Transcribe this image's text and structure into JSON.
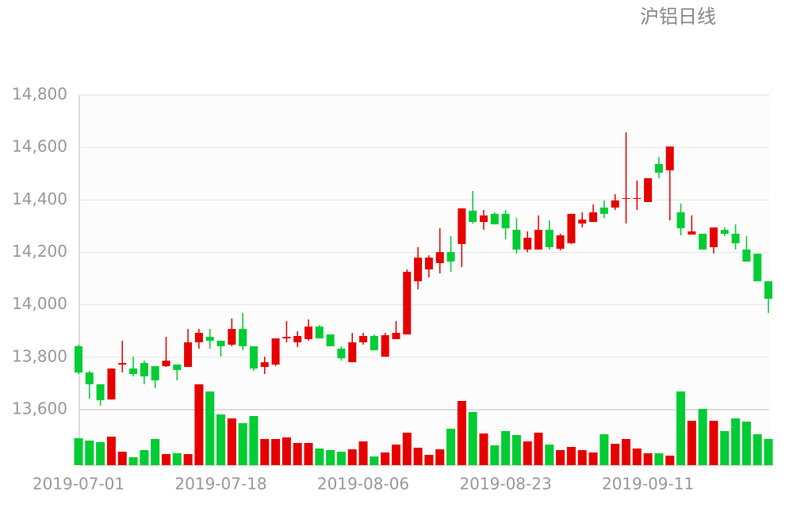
{
  "chart_data": {
    "type": "candlestick",
    "title": "沪铝日线",
    "categories": [
      "2019-07-01",
      null,
      null,
      null,
      null,
      null,
      null,
      null,
      null,
      null,
      null,
      null,
      null,
      "2019-07-18",
      null,
      null,
      null,
      null,
      null,
      null,
      null,
      null,
      null,
      null,
      null,
      null,
      "2019-08-06",
      null,
      null,
      null,
      null,
      null,
      null,
      null,
      null,
      null,
      null,
      null,
      null,
      "2019-08-23",
      null,
      null,
      null,
      null,
      null,
      null,
      null,
      null,
      null,
      null,
      null,
      null,
      "2019-09-11",
      null,
      null,
      null,
      null,
      null,
      null,
      null,
      null,
      null,
      null,
      null
    ],
    "open": [
      13842,
      13742,
      13697,
      13639,
      13772,
      13757,
      13778,
      13766,
      13766,
      13772,
      13763,
      13857,
      13878,
      13863,
      13848,
      13908,
      13842,
      13763,
      13772,
      13872,
      13857,
      13869,
      13917,
      13887,
      13833,
      13781,
      13857,
      13881,
      13802,
      13869,
      13887,
      14090,
      14135,
      14159,
      14201,
      14232,
      14359,
      14316,
      14347,
      14347,
      14286,
      14211,
      14211,
      14286,
      14214,
      14235,
      14310,
      14316,
      14371,
      14371,
      14404,
      14404,
      14392,
      14537,
      14513,
      14353,
      14268,
      14271,
      14220,
      14286,
      14271,
      14211,
      14195,
      14090
    ],
    "close": [
      13742,
      13697,
      13636,
      13757,
      13778,
      13736,
      13727,
      13712,
      13787,
      13751,
      13857,
      13893,
      13863,
      13842,
      13908,
      13842,
      13757,
      13781,
      13872,
      13878,
      13881,
      13917,
      13872,
      13842,
      13796,
      13857,
      13881,
      13827,
      13884,
      13893,
      14126,
      14180,
      14180,
      14201,
      14165,
      14368,
      14316,
      14341,
      14307,
      14292,
      14211,
      14256,
      14286,
      14220,
      14265,
      14347,
      14325,
      14353,
      14347,
      14398,
      14407,
      14407,
      14483,
      14504,
      14604,
      14292,
      14280,
      14211,
      14295,
      14271,
      14235,
      14165,
      14090,
      14023
    ],
    "high": [
      13848,
      13748,
      13697,
      13757,
      13863,
      13802,
      13787,
      13766,
      13878,
      13772,
      13908,
      13908,
      13908,
      13863,
      13948,
      13969,
      13842,
      13802,
      13872,
      13938,
      13899,
      13944,
      13923,
      13887,
      13842,
      13893,
      13893,
      13887,
      13893,
      13938,
      14135,
      14220,
      14189,
      14292,
      14262,
      14368,
      14434,
      14362,
      14353,
      14362,
      14331,
      14280,
      14341,
      14322,
      14271,
      14347,
      14353,
      14383,
      14398,
      14422,
      14658,
      14474,
      14483,
      14564,
      14604,
      14386,
      14341,
      14271,
      14295,
      14295,
      14307,
      14262,
      14195,
      14090
    ],
    "low": [
      13736,
      13642,
      13615,
      13639,
      13742,
      13727,
      13697,
      13682,
      13763,
      13712,
      13763,
      13833,
      13833,
      13802,
      13842,
      13827,
      13748,
      13736,
      13766,
      13857,
      13839,
      13863,
      13872,
      13842,
      13787,
      13781,
      13848,
      13827,
      13802,
      13869,
      13887,
      14059,
      14105,
      14120,
      14126,
      14144,
      14310,
      14286,
      14307,
      14250,
      14196,
      14201,
      14211,
      14211,
      14208,
      14232,
      14295,
      14316,
      14331,
      14362,
      14310,
      14362,
      14392,
      14483,
      14322,
      14265,
      14268,
      14211,
      14196,
      14262,
      14211,
      14165,
      14090,
      13969
    ],
    "volume": [
      34,
      31,
      29,
      36,
      17,
      10,
      19,
      33,
      14,
      15,
      14,
      102,
      93,
      64,
      59,
      53,
      62,
      33,
      33,
      35,
      28,
      28,
      21,
      19,
      17,
      20,
      30,
      11,
      16,
      26,
      41,
      22,
      13,
      20,
      46,
      81,
      67,
      40,
      25,
      43,
      38,
      30,
      41,
      26,
      19,
      23,
      19,
      16,
      39,
      27,
      33,
      21,
      15,
      15,
      12,
      93,
      56,
      71,
      56,
      43,
      59,
      55,
      39,
      33
    ],
    "up_color": "#e60000",
    "down_color": "#00cc33",
    "ylim": [
      13600,
      14800
    ],
    "yticks": [
      {
        "value": 13600,
        "label": "13,600"
      },
      {
        "value": 13800,
        "label": "13,800"
      },
      {
        "value": 14000,
        "label": "14,000"
      },
      {
        "value": 14200,
        "label": "14,200"
      },
      {
        "value": 14400,
        "label": "14,400"
      },
      {
        "value": 14600,
        "label": "14,600"
      },
      {
        "value": 14800,
        "label": "14,800"
      }
    ],
    "grid": true
  }
}
